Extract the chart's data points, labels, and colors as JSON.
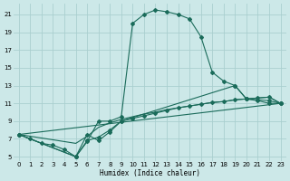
{
  "xlabel": "Humidex (Indice chaleur)",
  "bg_color": "#cce8e8",
  "grid_color": "#aacfcf",
  "line_color": "#1a6b5a",
  "xlim": [
    -0.5,
    23.5
  ],
  "ylim": [
    4.5,
    22.2
  ],
  "xticks": [
    0,
    1,
    2,
    3,
    4,
    5,
    6,
    7,
    8,
    9,
    10,
    11,
    12,
    13,
    14,
    15,
    16,
    17,
    18,
    19,
    20,
    21,
    22,
    23
  ],
  "yticks": [
    5,
    7,
    9,
    11,
    13,
    15,
    17,
    19,
    21
  ],
  "line1_x": [
    0,
    1,
    2,
    3,
    4,
    5,
    6,
    7,
    8,
    9,
    10,
    11,
    12,
    13,
    14,
    15,
    16,
    17,
    18,
    19,
    20,
    21,
    22,
    23
  ],
  "line1_y": [
    7.5,
    7.0,
    6.5,
    6.3,
    5.8,
    5.0,
    6.7,
    9.0,
    9.0,
    9.5,
    20.0,
    21.0,
    21.5,
    21.3,
    21.0,
    20.5,
    18.5,
    14.5,
    13.5,
    13.0,
    11.5,
    11.3,
    11.0,
    11.0
  ],
  "line2_x": [
    0,
    1,
    2,
    3,
    4,
    5,
    6,
    7,
    8,
    9,
    10,
    11,
    12,
    13,
    14,
    15,
    16,
    17,
    18,
    19,
    20,
    21,
    22,
    23
  ],
  "line2_y": [
    7.5,
    7.3,
    7.1,
    6.9,
    6.7,
    6.5,
    7.3,
    8.3,
    8.8,
    9.2,
    9.5,
    9.8,
    10.0,
    10.3,
    10.5,
    10.7,
    10.9,
    11.1,
    11.2,
    11.4,
    11.5,
    11.6,
    11.7,
    11.0
  ],
  "line3_x": [
    0,
    5,
    6,
    7,
    8,
    9,
    10,
    11,
    12,
    13,
    14,
    15,
    16,
    17,
    18,
    19,
    20,
    21,
    22,
    23
  ],
  "line3_y": [
    7.5,
    5.0,
    6.8,
    7.2,
    8.0,
    9.0,
    9.3,
    9.6,
    9.9,
    10.2,
    10.5,
    10.7,
    10.9,
    11.1,
    11.2,
    11.4,
    11.5,
    11.6,
    11.7,
    11.0
  ],
  "line4_x": [
    0,
    5,
    6,
    7,
    8,
    9,
    19,
    20,
    22,
    23
  ],
  "line4_y": [
    7.5,
    5.0,
    7.5,
    6.8,
    7.8,
    9.0,
    13.0,
    11.5,
    11.3,
    11.0
  ],
  "markersize": 2.0,
  "linewidth": 0.8
}
